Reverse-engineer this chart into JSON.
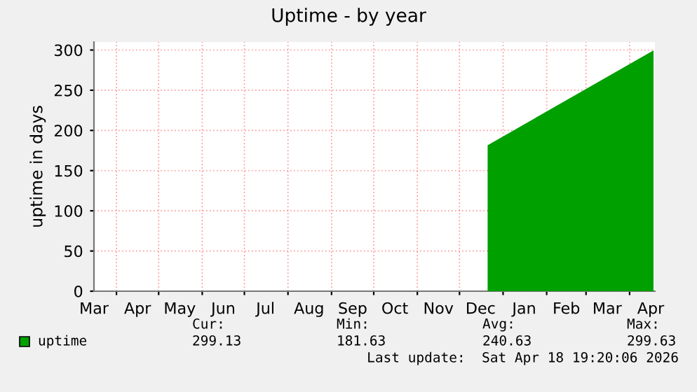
{
  "chart_data": {
    "type": "area",
    "title": "Uptime - by year",
    "ylabel": "uptime in days",
    "xlim": [
      "2025-03-16",
      "2026-04-19"
    ],
    "ylim": [
      0,
      310
    ],
    "xticks": [
      {
        "value": "2025-03-16",
        "label": "Mar"
      },
      {
        "value": "2025-04-01",
        "label": null
      },
      {
        "value": "2025-04-16",
        "label": "Apr"
      },
      {
        "value": "2025-05-01",
        "label": null
      },
      {
        "value": "2025-05-16",
        "label": "May"
      },
      {
        "value": "2025-06-01",
        "label": null
      },
      {
        "value": "2025-06-16",
        "label": "Jun"
      },
      {
        "value": "2025-07-01",
        "label": null
      },
      {
        "value": "2025-07-16",
        "label": "Jul"
      },
      {
        "value": "2025-08-01",
        "label": null
      },
      {
        "value": "2025-08-16",
        "label": "Aug"
      },
      {
        "value": "2025-09-01",
        "label": null
      },
      {
        "value": "2025-09-16",
        "label": "Sep"
      },
      {
        "value": "2025-10-01",
        "label": null
      },
      {
        "value": "2025-10-16",
        "label": "Oct"
      },
      {
        "value": "2025-11-01",
        "label": null
      },
      {
        "value": "2025-11-16",
        "label": "Nov"
      },
      {
        "value": "2025-12-01",
        "label": null
      },
      {
        "value": "2025-12-16",
        "label": "Dec"
      },
      {
        "value": "2026-01-01",
        "label": null
      },
      {
        "value": "2026-01-16",
        "label": "Jan"
      },
      {
        "value": "2026-02-01",
        "label": null
      },
      {
        "value": "2026-02-15",
        "label": "Feb"
      },
      {
        "value": "2026-03-01",
        "label": null
      },
      {
        "value": "2026-03-16",
        "label": "Mar"
      },
      {
        "value": "2026-04-01",
        "label": null
      },
      {
        "value": "2026-04-16",
        "label": "Apr"
      }
    ],
    "yticks": [
      0,
      50,
      100,
      150,
      200,
      250,
      300
    ],
    "grid": true,
    "legend": "bottom left",
    "series": [
      {
        "name": "uptime",
        "color": "#00a000",
        "x": [
          "2025-12-21",
          "2026-04-18"
        ],
        "values": [
          181.63,
          299.63
        ]
      }
    ],
    "annotations": [
      "Cur:",
      "299.13",
      "Min:",
      "181.63",
      "Avg:",
      "240.63",
      "Max:",
      "299.63",
      "Last update:  Sat Apr 18 19:20:06 2026"
    ]
  }
}
